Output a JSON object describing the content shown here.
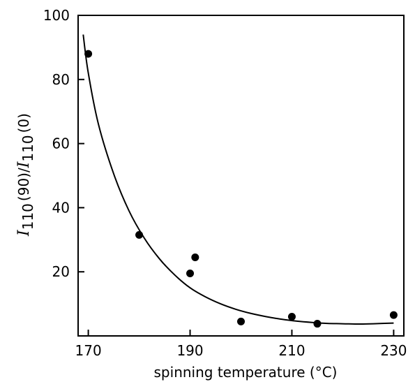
{
  "chart_data": {
    "type": "scatter",
    "title": "",
    "xlabel": "spinning temperature (°C)",
    "ylabel": {
      "symbol": "I",
      "subscript": "110",
      "num_arg": "(90)",
      "sep": "/",
      "symbol2": "I",
      "subscript2": "110",
      "den_arg": "(0)"
    },
    "xlim": [
      168,
      232
    ],
    "ylim": [
      0,
      100
    ],
    "xticks": [
      170,
      190,
      210,
      230
    ],
    "yticks": [
      20,
      40,
      60,
      80,
      100
    ],
    "grid": false,
    "series": [
      {
        "kind": "points",
        "x": [
          170,
          180,
          190,
          191,
          200,
          210,
          215,
          230
        ],
        "y": [
          88,
          31.5,
          19.5,
          24.5,
          4.5,
          6,
          3.8,
          6.5
        ]
      },
      {
        "kind": "fitted-curve",
        "x": [
          169,
          170,
          172,
          175,
          178,
          181,
          184,
          187,
          190,
          193,
          196,
          199,
          202,
          205,
          208,
          211,
          214,
          217,
          220,
          223,
          226,
          230
        ],
        "y": [
          94,
          82,
          66,
          50.5,
          39,
          30.5,
          24,
          19,
          15,
          12.2,
          10,
          8.3,
          7.0,
          6.0,
          5.2,
          4.6,
          4.2,
          3.9,
          3.8,
          3.7,
          3.8,
          4.0
        ]
      }
    ]
  }
}
